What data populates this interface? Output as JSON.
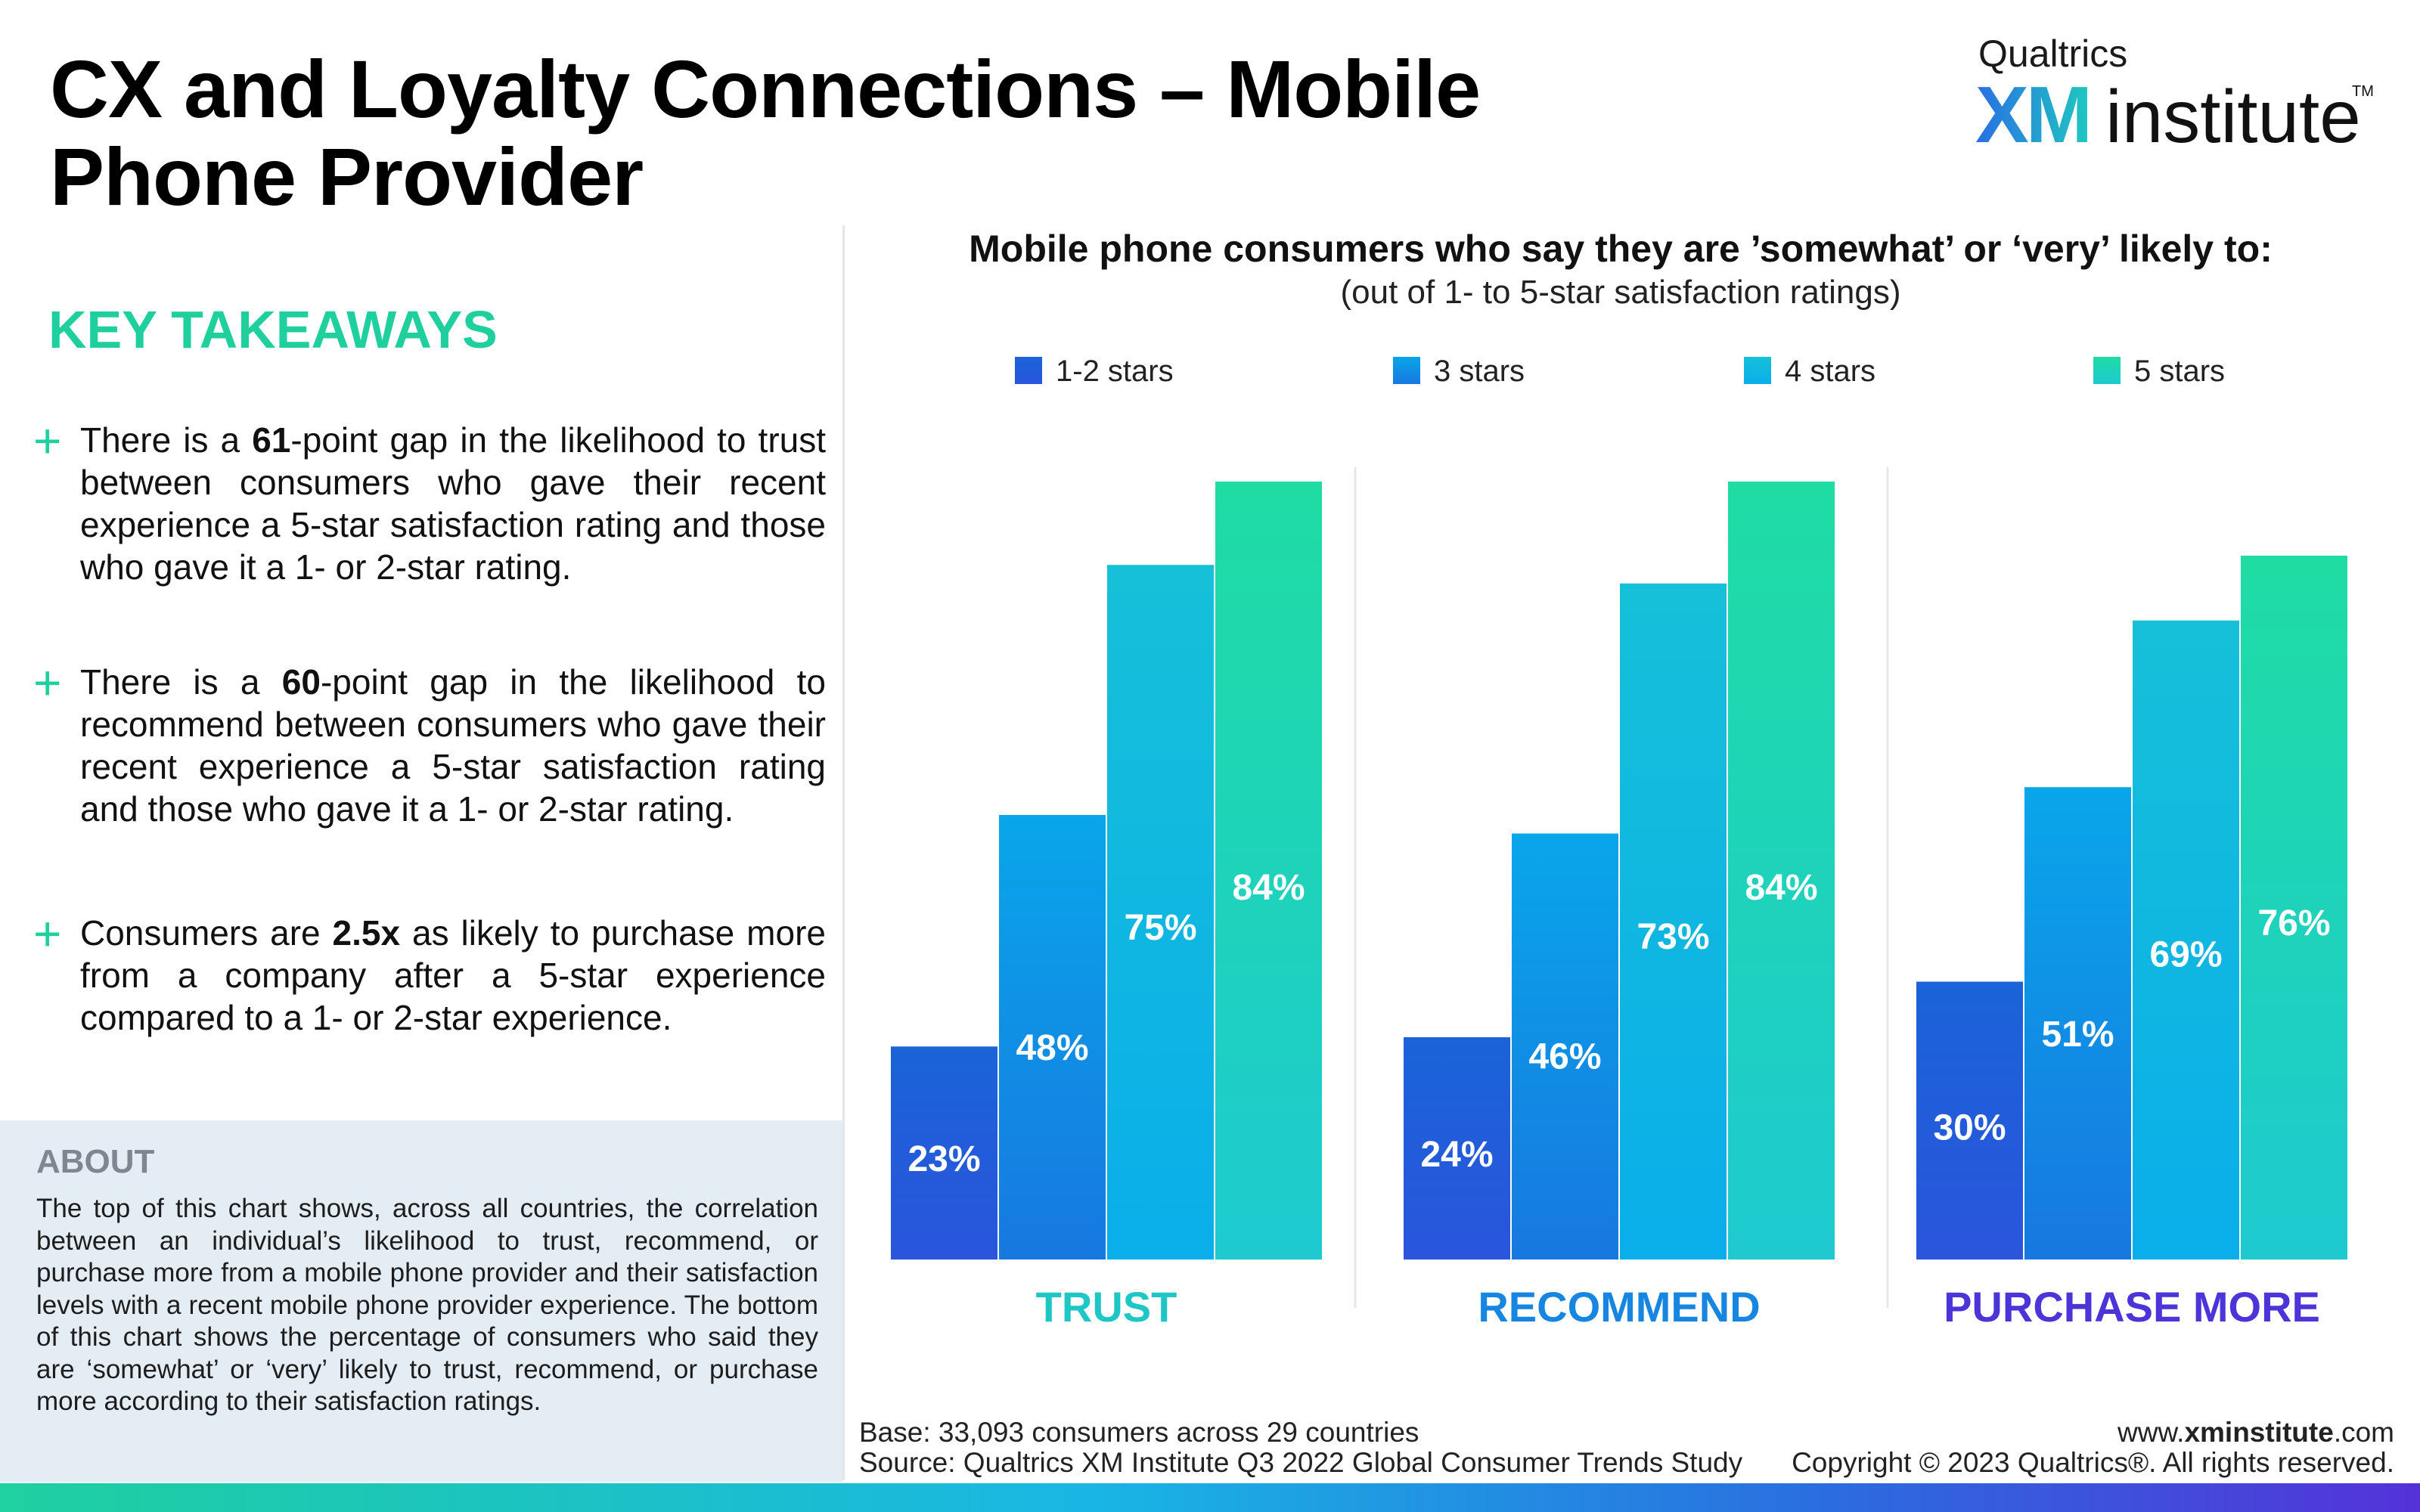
{
  "header": {
    "title": "CX and Loyalty Connections – Mobile Phone Provider",
    "logo": {
      "small": "Qualtrics",
      "xm": "XM",
      "institute": "institute",
      "tm": "TM"
    }
  },
  "takeaways": {
    "heading": "KEY TAKEAWAYS",
    "items": [
      {
        "before": "There is a ",
        "bold": "61",
        "after": "-point gap in the likelihood to trust between consumers who gave their recent experience a 5-star satisfaction rating and those who gave it a 1- or 2-star rating."
      },
      {
        "before": "There is a  ",
        "bold": "60",
        "after": "-point gap in the likelihood to recommend between consumers who gave their recent experience a 5-star satisfaction rating and those who gave it a 1- or 2-star rating."
      },
      {
        "before": "Consumers are ",
        "bold": "2.5x",
        "after": " as likely to purchase more from a company after a 5-star experience compared to a 1- or 2-star experience."
      }
    ]
  },
  "about": {
    "heading": "ABOUT",
    "text": "The top of this chart shows, across all countries, the correlation between an individual’s likelihood to trust, recommend, or purchase more from a mobile phone provider and their satisfaction levels with a recent mobile phone provider experience. The bottom of this chart shows the percentage of consumers who said they are ‘somewhat’ or ‘very’ likely to trust, recommend, or purchase more according to their satisfaction ratings."
  },
  "chart_data": {
    "type": "bar",
    "title": "Mobile phone consumers who say they are ’somewhat’ or ‘very’ likely to:",
    "subtitle": "(out of 1- to 5-star satisfaction ratings)",
    "categories": [
      "TRUST",
      "RECOMMEND",
      "PURCHASE MORE"
    ],
    "category_colors": [
      "#1ec6c6",
      "#1686e0",
      "#4b35d8"
    ],
    "series": [
      {
        "name": "1-2 stars",
        "values": [
          23,
          24,
          30
        ],
        "color_top": "#1a63d8",
        "color_bottom": "#2a55dc"
      },
      {
        "name": "3 stars",
        "values": [
          48,
          46,
          51
        ],
        "color_top": "#09a6ea",
        "color_bottom": "#1778e0"
      },
      {
        "name": "4 stars",
        "values": [
          75,
          73,
          69
        ],
        "color_top": "#16c0d8",
        "color_bottom": "#0aaeea"
      },
      {
        "name": "5 stars",
        "values": [
          84,
          84,
          76
        ],
        "color_top": "#1fdca4",
        "color_bottom": "#1ecad0"
      }
    ],
    "value_suffix": "%",
    "ylim": [
      0,
      100
    ],
    "legend_position": "top",
    "grid": false
  },
  "footer": {
    "base": "Base: 33,093 consumers across 29 countries",
    "source": "Source: Qualtrics XM Institute Q3 2022 Global Consumer Trends Study",
    "url_prefix": "www.",
    "url_bold": "xminstitute",
    "url_suffix": ".com",
    "copyright": "Copyright © 2023 Qualtrics®. All rights reserved."
  }
}
